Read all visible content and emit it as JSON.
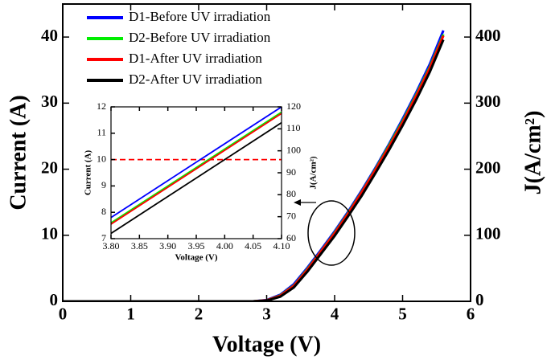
{
  "chart_data": [
    {
      "type": "line",
      "x_label": "Voltage (V)",
      "y_label": "Current (A)",
      "y2_label": "J(A/cm²)",
      "x": [
        0,
        1,
        2,
        2.8,
        3.0,
        3.2,
        3.4,
        3.6,
        3.8,
        4.0,
        4.2,
        4.4,
        4.6,
        4.8,
        5.0,
        5.2,
        5.4,
        5.6
      ],
      "xlim": [
        0,
        6
      ],
      "xticks": [
        0,
        1,
        2,
        3,
        4,
        5,
        6
      ],
      "ylim": [
        0,
        45
      ],
      "yticks": [
        0,
        10,
        20,
        30,
        40
      ],
      "y2lim": [
        0,
        450
      ],
      "y2ticks": [
        0,
        100,
        200,
        300,
        400
      ],
      "legend": "upper left",
      "series": [
        {
          "name": "D1-Before UV irradiation",
          "color": "#0000ff",
          "values": [
            0,
            0,
            0,
            0,
            0.2,
            1.0,
            2.6,
            5.1,
            7.8,
            10.6,
            13.6,
            16.8,
            20.2,
            23.8,
            27.6,
            31.6,
            35.9,
            41.0
          ]
        },
        {
          "name": "D2-Before UV irradiation",
          "color": "#00ee00",
          "values": [
            0,
            0,
            0,
            0,
            0.15,
            0.9,
            2.4,
            4.9,
            7.6,
            10.4,
            13.4,
            16.6,
            20.0,
            23.6,
            27.3,
            31.3,
            35.5,
            40.4
          ]
        },
        {
          "name": "D1-After UV irradiation",
          "color": "#ff0000",
          "values": [
            0,
            0,
            0,
            0,
            0.15,
            0.85,
            2.35,
            4.8,
            7.55,
            10.3,
            13.3,
            16.5,
            19.9,
            23.4,
            27.1,
            31.1,
            35.3,
            40.2
          ]
        },
        {
          "name": "D2-After UV irradiation",
          "color": "#000000",
          "values": [
            0,
            0,
            0,
            0,
            0.1,
            0.7,
            2.1,
            4.5,
            7.2,
            9.9,
            12.9,
            16.0,
            19.4,
            22.9,
            26.6,
            30.5,
            34.7,
            39.6
          ]
        }
      ]
    },
    {
      "type": "line",
      "x_label": "Voltage (V)",
      "y_label": "Current (A)",
      "y2_label": "J(A/cm²)",
      "x": [
        3.8,
        4.1
      ],
      "xlim": [
        3.8,
        4.1
      ],
      "xticks": [
        {
          "value": 3.8,
          "label": "3.80"
        },
        {
          "value": 3.85,
          "label": "3.85"
        },
        {
          "value": 3.9,
          "label": "3.90"
        },
        {
          "value": 3.95,
          "label": "3.95"
        },
        {
          "value": 4.0,
          "label": "4.00"
        },
        {
          "value": 4.05,
          "label": "4.05"
        },
        {
          "value": 4.1,
          "label": "4.10"
        }
      ],
      "ylim": [
        7,
        12
      ],
      "yticks": [
        7,
        8,
        9,
        10,
        11,
        12
      ],
      "y2lim": [
        60,
        120
      ],
      "y2ticks": [
        60,
        70,
        80,
        90,
        100,
        110,
        120
      ],
      "reference_line": {
        "value": 10,
        "color": "#ff0000",
        "style": "dashed"
      },
      "series": [
        {
          "name": "D1-Before UV irradiation",
          "color": "#0000ff",
          "values": [
            7.8,
            12.0
          ]
        },
        {
          "name": "D2-Before UV irradiation",
          "color": "#00ee00",
          "values": [
            7.6,
            11.8
          ]
        },
        {
          "name": "D1-After UV irradiation",
          "color": "#ff0000",
          "values": [
            7.55,
            11.75
          ]
        },
        {
          "name": "D2-After UV irradiation",
          "color": "#000000",
          "values": [
            7.2,
            11.4
          ]
        }
      ]
    }
  ]
}
